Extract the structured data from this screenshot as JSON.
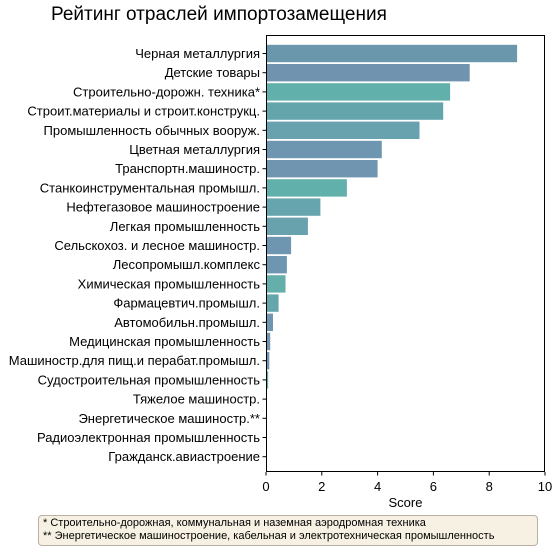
{
  "chart_data": {
    "type": "bar",
    "orientation": "horizontal",
    "title": "Рейтинг отраслей импортозамещения",
    "xlabel": "Score",
    "ylabel": "",
    "xlim": [
      0,
      10
    ],
    "xticks": [
      "0",
      "2",
      "4",
      "6",
      "8",
      "10"
    ],
    "grid": false,
    "categories": [
      "Черная металлургия",
      "Детские товары",
      "Строительно-дорожн. техника*",
      "Строит.материалы и строит.конструкц.",
      "Промышленность обычных вооруж.",
      "Цветная металлургия",
      "Транспортн.машиностр.",
      "Станкоинструментальная промышл.",
      "Нефтегазовое машиностроение",
      "Легкая промышленность",
      "Сельскохоз. и лесное машиностр.",
      "Лесопромышл.комплекс",
      "Химическая промышленность",
      "Фармацевтич.промышл.",
      "Автомобильн.промышл.",
      "Медицинская промышленность",
      "Машиностр.для пищ.и перабат.промышл.",
      "Судостроительная промышленность",
      "Тяжелое машиностр.",
      "Энергетическое машиностр.**",
      "Радиоэлектронная промышленность",
      "Гражданск.авиастроение"
    ],
    "values": [
      9.0,
      7.3,
      6.6,
      6.35,
      5.5,
      4.15,
      4.0,
      2.9,
      1.95,
      1.5,
      0.9,
      0.75,
      0.7,
      0.45,
      0.25,
      0.15,
      0.12,
      0.08,
      0,
      0,
      0,
      0
    ],
    "colors": [
      "#6b97ac",
      "#7093b0",
      "#62b0ac",
      "#63a5ab",
      "#67a2ae",
      "#6f96b1",
      "#6f95b0",
      "#62b0ac",
      "#66a4ae",
      "#67a2ad",
      "#6e96b1",
      "#6e96b1",
      "#64aeab",
      "#65a6ad",
      "#6f95b0",
      "#6f95b0",
      "#6f95b0",
      "#64aeab",
      "#6f95b0",
      "#64aeab",
      "#6f95b0",
      "#6f95b0"
    ]
  },
  "footnotes": [
    "* Строительно-дорожная, коммунальная и наземная аэродромная техника",
    "** Энергетическое машиностроение, кабельная и электротехническая промышленность"
  ]
}
